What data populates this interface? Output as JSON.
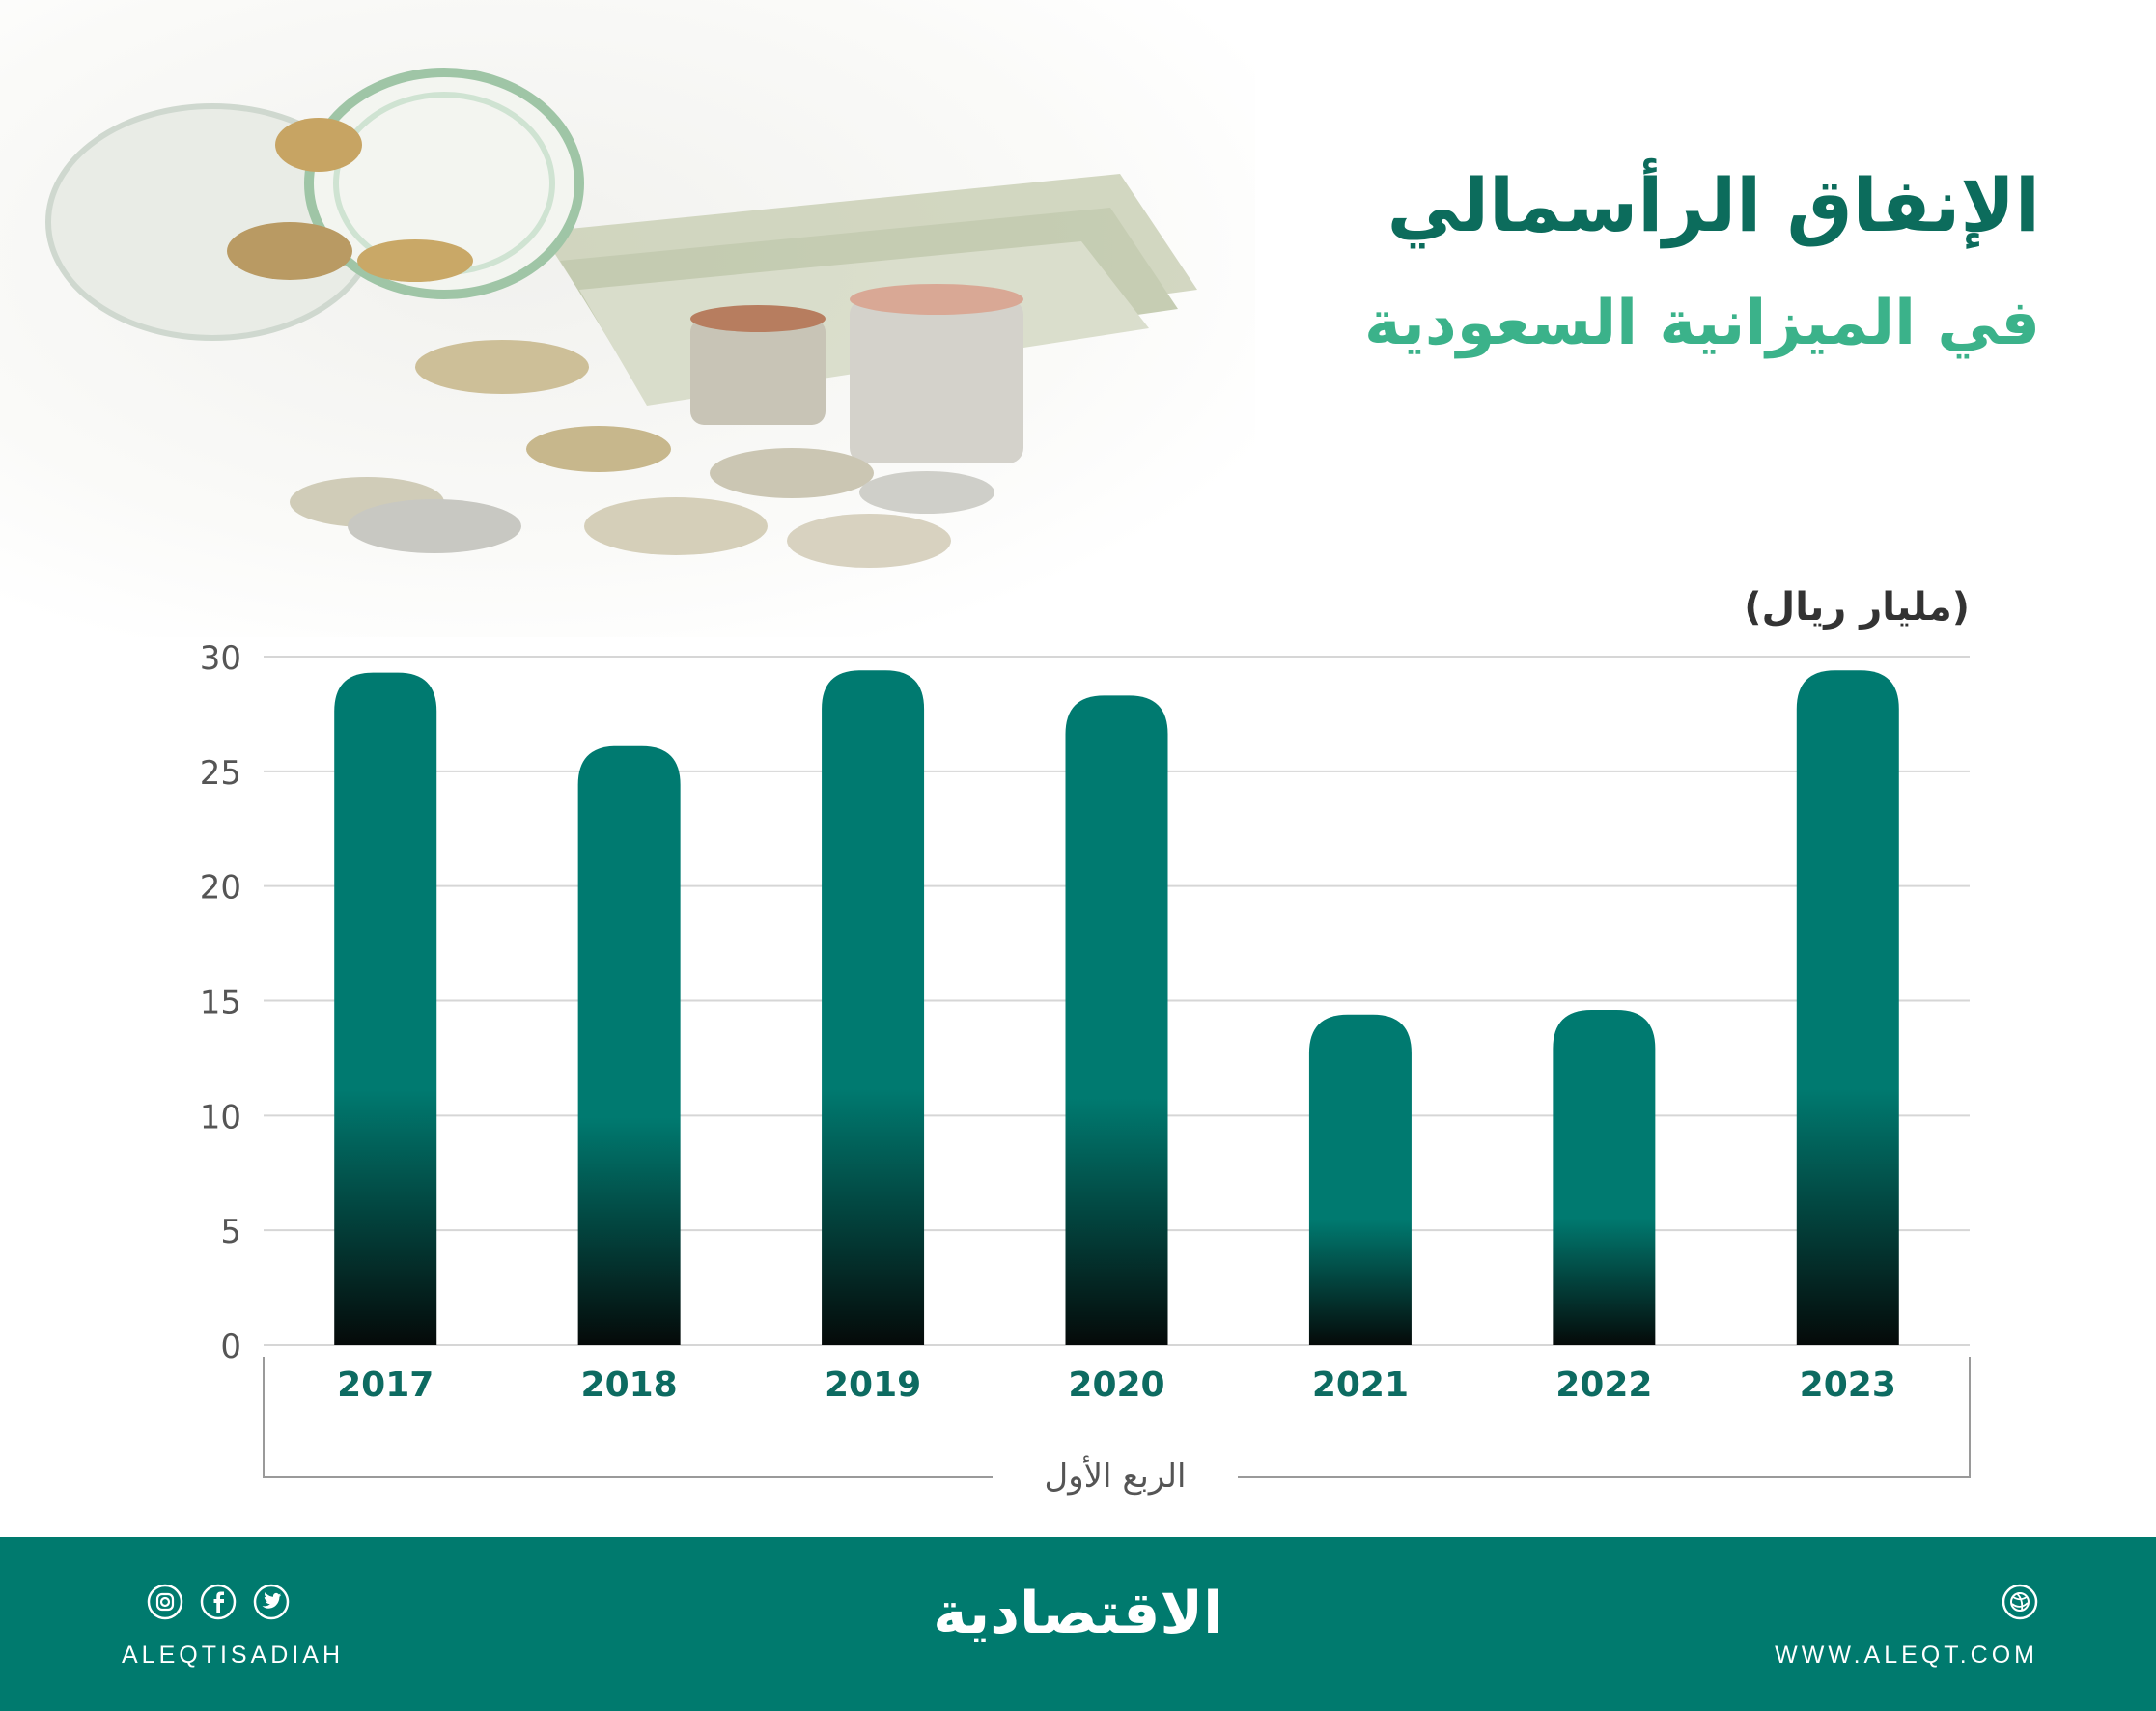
{
  "title_line1": "الإنفاق الرأسمالي",
  "title_line2": "في الميزانية السعودية",
  "unit_label": "(مليار ريال)",
  "colors": {
    "bar_top": "#007a70",
    "bar_bottom": "#050a09",
    "footer": "#007a6e",
    "title_dark": "#0c6c5c",
    "title_light": "#3bb28a",
    "year_label": "#0d6b61"
  },
  "chart_data": {
    "type": "bar",
    "categories": [
      "2017",
      "2018",
      "2019",
      "2020",
      "2021",
      "2022",
      "2023"
    ],
    "values": [
      29.3,
      26.1,
      29.4,
      28.3,
      14.4,
      14.6,
      29.4
    ],
    "ylim": [
      0,
      30
    ],
    "yticks": [
      "0",
      "5",
      "10",
      "15",
      "20",
      "25",
      "30"
    ],
    "ylabel": "(مليار ريال)",
    "xlabel": "",
    "group_label": "الربع الأول",
    "grid": true,
    "legend": "none"
  },
  "footer": {
    "logo_text": "الاقتصادية",
    "social_handle": "ALEQTISADIAH",
    "website": "WWW.ALEQT.COM",
    "social_icons": [
      "instagram-icon",
      "facebook-icon",
      "twitter-icon"
    ],
    "web_icon": "globe-icon"
  }
}
